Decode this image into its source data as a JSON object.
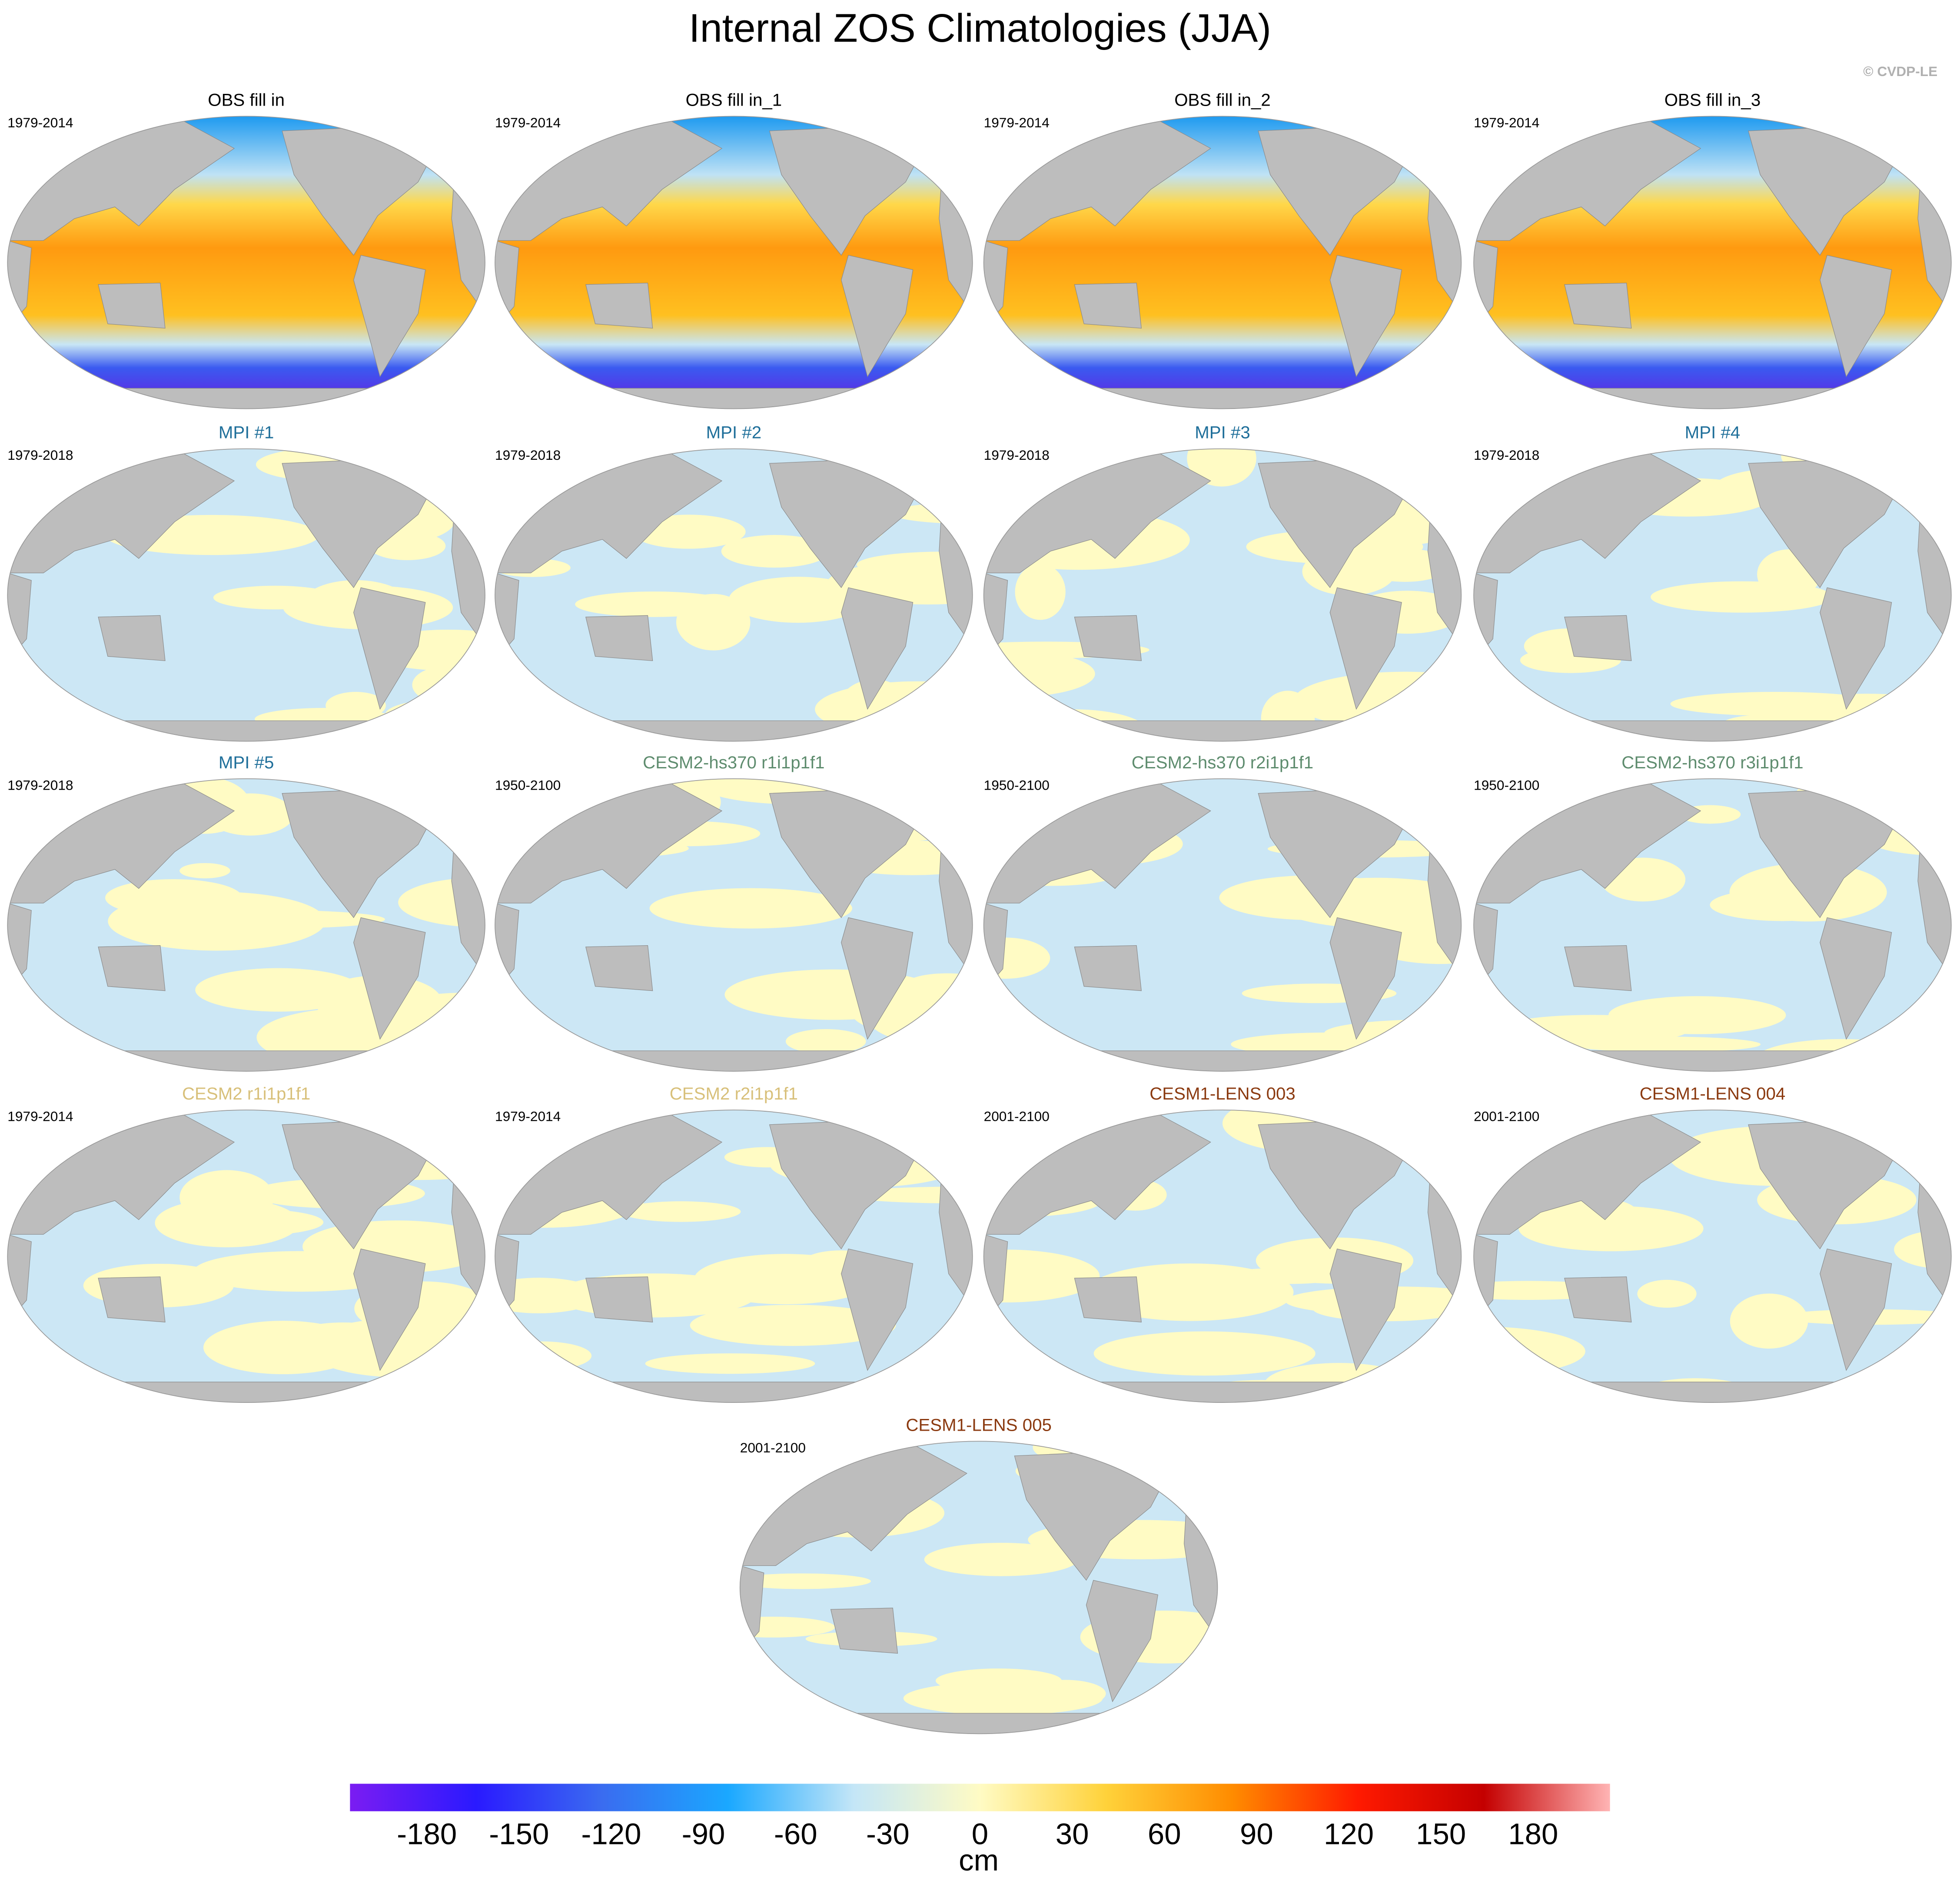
{
  "title": "Internal ZOS Climatologies (JJA)",
  "copyright": "© CVDP-LE",
  "panels": [
    {
      "title": "OBS fill in",
      "period": "1979-2014",
      "title_color": "#000000"
    },
    {
      "title": "OBS fill in_1",
      "period": "1979-2014",
      "title_color": "#000000"
    },
    {
      "title": "OBS fill in_2",
      "period": "1979-2014",
      "title_color": "#000000"
    },
    {
      "title": "OBS fill in_3",
      "period": "1979-2014",
      "title_color": "#000000"
    },
    {
      "title": "MPI #1",
      "period": "1979-2018",
      "title_color": "#1f6f9a"
    },
    {
      "title": "MPI #2",
      "period": "1979-2018",
      "title_color": "#1f6f9a"
    },
    {
      "title": "MPI #3",
      "period": "1979-2018",
      "title_color": "#1f6f9a"
    },
    {
      "title": "MPI #4",
      "period": "1979-2018",
      "title_color": "#1f6f9a"
    },
    {
      "title": "MPI #5",
      "period": "1979-2018",
      "title_color": "#1f6f9a"
    },
    {
      "title": "CESM2-hs370 r1i1p1f1",
      "period": "1950-2100",
      "title_color": "#5e8c6e"
    },
    {
      "title": "CESM2-hs370 r2i1p1f1",
      "period": "1950-2100",
      "title_color": "#5e8c6e"
    },
    {
      "title": "CESM2-hs370 r3i1p1f1",
      "period": "1950-2100",
      "title_color": "#5e8c6e"
    },
    {
      "title": "CESM2 r1i1p1f1",
      "period": "1979-2014",
      "title_color": "#d8c07a"
    },
    {
      "title": "CESM2 r2i1p1f1",
      "period": "1979-2014",
      "title_color": "#d8c07a"
    },
    {
      "title": "CESM1-LENS 003",
      "period": "2001-2100",
      "title_color": "#8b3a10"
    },
    {
      "title": "CESM1-LENS 004",
      "period": "2001-2100",
      "title_color": "#8b3a10"
    },
    {
      "title": "CESM1-LENS 005",
      "period": "2001-2100",
      "title_color": "#8b3a10"
    }
  ],
  "colorbar": {
    "label": "cm",
    "clim": [
      -205,
      205
    ],
    "ticks": [
      -180,
      -150,
      -120,
      -90,
      -60,
      -30,
      0,
      30,
      60,
      90,
      120,
      150,
      180
    ],
    "colors": [
      "#7b1cf2",
      "#2a1aff",
      "#3a6cf0",
      "#1aa8ff",
      "#c4e6f7",
      "#fffbc4",
      "#ffd23a",
      "#ff8c00",
      "#ff1a00",
      "#c40000",
      "#ffb4b4"
    ]
  }
}
